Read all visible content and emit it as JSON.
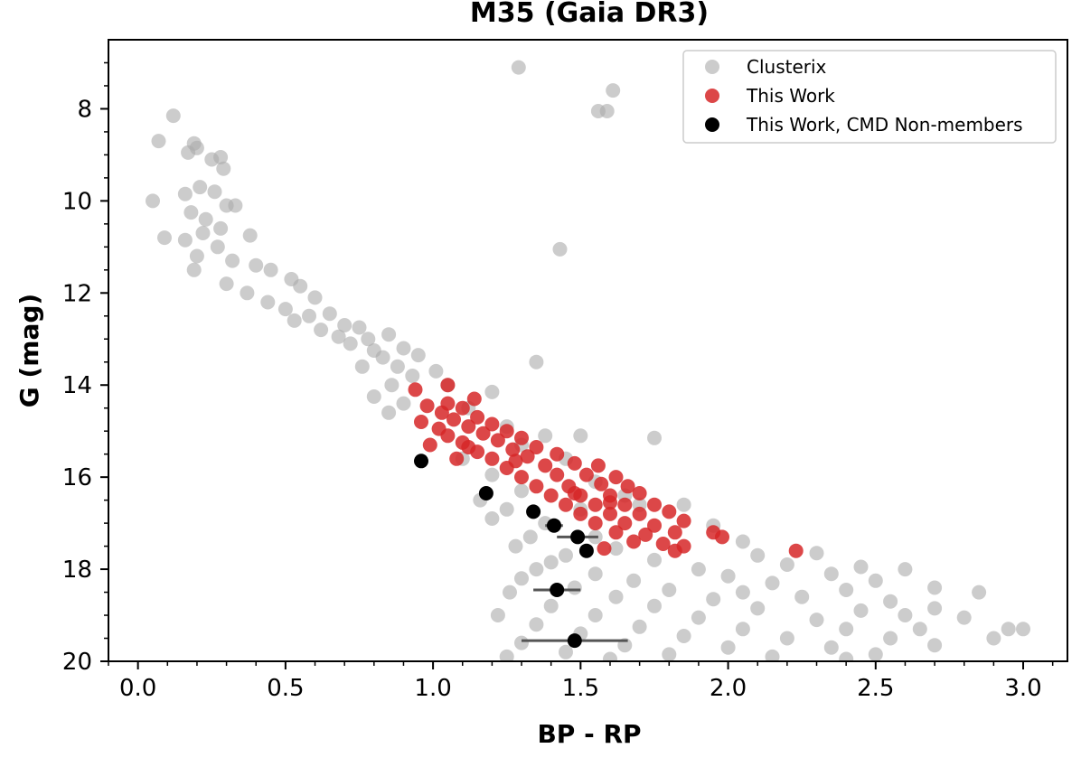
{
  "chart_data": {
    "type": "scatter",
    "title": "M35 (Gaia DR3)",
    "xlabel": "BP - RP",
    "ylabel": "G (mag)",
    "xlim": [
      -0.1,
      3.15
    ],
    "ylim": [
      20,
      6.5
    ],
    "y_inverted": true,
    "x_ticks": [
      {
        "value": 0.0,
        "label": "0.0"
      },
      {
        "value": 0.5,
        "label": "0.5"
      },
      {
        "value": 1.0,
        "label": "1.0"
      },
      {
        "value": 1.5,
        "label": "1.5"
      },
      {
        "value": 2.0,
        "label": "2.0"
      },
      {
        "value": 2.5,
        "label": "2.5"
      },
      {
        "value": 3.0,
        "label": "3.0"
      }
    ],
    "y_ticks": [
      {
        "value": 8,
        "label": "8"
      },
      {
        "value": 10,
        "label": "10"
      },
      {
        "value": 12,
        "label": "12"
      },
      {
        "value": 14,
        "label": "14"
      },
      {
        "value": 16,
        "label": "16"
      },
      {
        "value": 18,
        "label": "18"
      },
      {
        "value": 20,
        "label": "20"
      }
    ],
    "legend_position": "top-right",
    "colors": {
      "clusterix": "#aaaaaa",
      "this_work": "#d62728",
      "non_members": "#000000",
      "errorbar": "#555555"
    },
    "series": [
      {
        "name": "Clusterix",
        "style": "grey-circles",
        "points": [
          [
            1.29,
            7.1
          ],
          [
            1.61,
            7.6
          ],
          [
            1.56,
            8.05
          ],
          [
            1.59,
            8.05
          ],
          [
            0.12,
            8.15
          ],
          [
            0.07,
            8.7
          ],
          [
            0.19,
            8.75
          ],
          [
            0.2,
            8.85
          ],
          [
            0.17,
            8.95
          ],
          [
            0.25,
            9.1
          ],
          [
            0.28,
            9.05
          ],
          [
            0.29,
            9.3
          ],
          [
            0.21,
            9.7
          ],
          [
            0.26,
            9.8
          ],
          [
            0.16,
            9.85
          ],
          [
            0.3,
            10.1
          ],
          [
            0.05,
            10.0
          ],
          [
            0.33,
            10.1
          ],
          [
            0.18,
            10.25
          ],
          [
            0.23,
            10.4
          ],
          [
            0.28,
            10.6
          ],
          [
            0.22,
            10.7
          ],
          [
            0.09,
            10.8
          ],
          [
            0.16,
            10.85
          ],
          [
            0.38,
            10.75
          ],
          [
            0.27,
            11.0
          ],
          [
            1.43,
            11.05
          ],
          [
            0.2,
            11.2
          ],
          [
            0.32,
            11.3
          ],
          [
            0.4,
            11.4
          ],
          [
            0.19,
            11.5
          ],
          [
            0.45,
            11.5
          ],
          [
            0.3,
            11.8
          ],
          [
            0.52,
            11.7
          ],
          [
            0.55,
            11.85
          ],
          [
            0.37,
            12.0
          ],
          [
            0.6,
            12.1
          ],
          [
            0.44,
            12.2
          ],
          [
            0.5,
            12.35
          ],
          [
            0.58,
            12.5
          ],
          [
            0.65,
            12.45
          ],
          [
            0.53,
            12.6
          ],
          [
            0.7,
            12.7
          ],
          [
            0.75,
            12.75
          ],
          [
            0.62,
            12.8
          ],
          [
            0.68,
            12.95
          ],
          [
            0.78,
            13.0
          ],
          [
            0.85,
            12.9
          ],
          [
            0.72,
            13.1
          ],
          [
            0.8,
            13.25
          ],
          [
            0.9,
            13.2
          ],
          [
            0.83,
            13.4
          ],
          [
            0.95,
            13.35
          ],
          [
            0.88,
            13.6
          ],
          [
            0.76,
            13.6
          ],
          [
            1.01,
            13.7
          ],
          [
            0.93,
            13.8
          ],
          [
            0.86,
            14.0
          ],
          [
            1.05,
            14.0
          ],
          [
            0.8,
            14.25
          ],
          [
            1.2,
            14.15
          ],
          [
            0.9,
            14.4
          ],
          [
            1.35,
            13.5
          ],
          [
            1.12,
            14.5
          ],
          [
            0.85,
            14.6
          ],
          [
            1.25,
            14.9
          ],
          [
            1.38,
            15.1
          ],
          [
            1.5,
            15.1
          ],
          [
            1.3,
            15.3
          ],
          [
            1.75,
            15.15
          ],
          [
            1.1,
            15.6
          ],
          [
            1.45,
            15.6
          ],
          [
            1.2,
            15.95
          ],
          [
            1.55,
            16.1
          ],
          [
            1.16,
            16.5
          ],
          [
            1.3,
            16.3
          ],
          [
            1.65,
            16.4
          ],
          [
            1.25,
            16.7
          ],
          [
            1.5,
            16.7
          ],
          [
            1.7,
            16.6
          ],
          [
            1.85,
            16.6
          ],
          [
            1.2,
            16.9
          ],
          [
            1.38,
            17.0
          ],
          [
            1.95,
            17.05
          ],
          [
            1.33,
            17.3
          ],
          [
            1.55,
            17.3
          ],
          [
            2.05,
            17.4
          ],
          [
            1.28,
            17.5
          ],
          [
            1.62,
            17.55
          ],
          [
            1.45,
            17.7
          ],
          [
            2.1,
            17.7
          ],
          [
            2.3,
            17.65
          ],
          [
            1.75,
            17.8
          ],
          [
            1.4,
            17.85
          ],
          [
            2.2,
            17.9
          ],
          [
            1.35,
            18.0
          ],
          [
            1.9,
            18.0
          ],
          [
            2.45,
            17.95
          ],
          [
            1.55,
            18.1
          ],
          [
            2.0,
            18.15
          ],
          [
            2.35,
            18.1
          ],
          [
            2.6,
            18.0
          ],
          [
            1.3,
            18.2
          ],
          [
            1.68,
            18.25
          ],
          [
            2.15,
            18.3
          ],
          [
            2.5,
            18.25
          ],
          [
            1.48,
            18.4
          ],
          [
            1.8,
            18.45
          ],
          [
            2.05,
            18.5
          ],
          [
            2.4,
            18.45
          ],
          [
            2.7,
            18.4
          ],
          [
            1.26,
            18.5
          ],
          [
            1.62,
            18.6
          ],
          [
            1.95,
            18.65
          ],
          [
            2.25,
            18.6
          ],
          [
            2.55,
            18.7
          ],
          [
            2.85,
            18.5
          ],
          [
            1.4,
            18.8
          ],
          [
            1.75,
            18.8
          ],
          [
            2.1,
            18.85
          ],
          [
            2.45,
            18.9
          ],
          [
            2.7,
            18.85
          ],
          [
            1.22,
            19.0
          ],
          [
            1.55,
            19.0
          ],
          [
            1.9,
            19.05
          ],
          [
            2.3,
            19.1
          ],
          [
            2.6,
            19.0
          ],
          [
            2.8,
            19.05
          ],
          [
            1.35,
            19.2
          ],
          [
            1.7,
            19.25
          ],
          [
            2.05,
            19.3
          ],
          [
            2.4,
            19.3
          ],
          [
            2.65,
            19.3
          ],
          [
            2.95,
            19.3
          ],
          [
            1.5,
            19.4
          ],
          [
            1.85,
            19.45
          ],
          [
            2.2,
            19.5
          ],
          [
            2.55,
            19.5
          ],
          [
            2.9,
            19.5
          ],
          [
            1.3,
            19.6
          ],
          [
            1.65,
            19.65
          ],
          [
            2.0,
            19.7
          ],
          [
            2.35,
            19.7
          ],
          [
            2.7,
            19.65
          ],
          [
            3.0,
            19.3
          ],
          [
            1.45,
            19.8
          ],
          [
            1.8,
            19.85
          ],
          [
            2.15,
            19.9
          ],
          [
            2.5,
            19.85
          ],
          [
            1.6,
            19.95
          ],
          [
            2.4,
            19.95
          ],
          [
            1.25,
            19.9
          ]
        ]
      },
      {
        "name": "This Work",
        "style": "red-circles",
        "points": [
          [
            0.94,
            14.1
          ],
          [
            1.05,
            14.0
          ],
          [
            1.14,
            14.3
          ],
          [
            0.98,
            14.45
          ],
          [
            1.03,
            14.6
          ],
          [
            1.1,
            14.5
          ],
          [
            0.96,
            14.8
          ],
          [
            1.07,
            14.75
          ],
          [
            1.15,
            14.7
          ],
          [
            1.02,
            14.95
          ],
          [
            1.12,
            14.9
          ],
          [
            1.2,
            14.85
          ],
          [
            1.05,
            15.1
          ],
          [
            1.17,
            15.05
          ],
          [
            1.25,
            15.0
          ],
          [
            0.99,
            15.3
          ],
          [
            1.1,
            15.25
          ],
          [
            1.22,
            15.2
          ],
          [
            1.3,
            15.15
          ],
          [
            1.15,
            15.45
          ],
          [
            1.27,
            15.4
          ],
          [
            1.35,
            15.35
          ],
          [
            1.08,
            15.6
          ],
          [
            1.2,
            15.6
          ],
          [
            1.32,
            15.55
          ],
          [
            1.42,
            15.5
          ],
          [
            1.25,
            15.8
          ],
          [
            1.38,
            15.75
          ],
          [
            1.48,
            15.7
          ],
          [
            1.56,
            15.75
          ],
          [
            1.3,
            16.0
          ],
          [
            1.42,
            15.95
          ],
          [
            1.52,
            15.95
          ],
          [
            1.62,
            16.0
          ],
          [
            1.35,
            16.2
          ],
          [
            1.46,
            16.2
          ],
          [
            1.57,
            16.15
          ],
          [
            1.66,
            16.2
          ],
          [
            1.4,
            16.4
          ],
          [
            1.5,
            16.4
          ],
          [
            1.6,
            16.4
          ],
          [
            1.7,
            16.35
          ],
          [
            1.45,
            16.6
          ],
          [
            1.55,
            16.6
          ],
          [
            1.65,
            16.6
          ],
          [
            1.75,
            16.6
          ],
          [
            1.5,
            16.8
          ],
          [
            1.6,
            16.8
          ],
          [
            1.7,
            16.8
          ],
          [
            1.8,
            16.75
          ],
          [
            1.85,
            16.95
          ],
          [
            1.55,
            17.0
          ],
          [
            1.65,
            17.0
          ],
          [
            1.75,
            17.05
          ],
          [
            1.62,
            17.2
          ],
          [
            1.72,
            17.25
          ],
          [
            1.82,
            17.2
          ],
          [
            1.95,
            17.2
          ],
          [
            1.98,
            17.3
          ],
          [
            1.68,
            17.4
          ],
          [
            1.78,
            17.45
          ],
          [
            1.85,
            17.5
          ],
          [
            1.58,
            17.55
          ],
          [
            1.82,
            17.6
          ],
          [
            2.23,
            17.6
          ],
          [
            1.12,
            15.35
          ],
          [
            1.05,
            14.4
          ],
          [
            1.28,
            15.65
          ],
          [
            1.48,
            16.35
          ],
          [
            1.6,
            16.55
          ]
        ]
      },
      {
        "name": "This Work, CMD Non-members",
        "style": "black-circles",
        "points": [
          [
            0.96,
            15.65
          ],
          [
            1.18,
            16.35
          ],
          [
            1.34,
            16.75
          ],
          [
            1.41,
            17.05
          ],
          [
            1.49,
            17.3
          ],
          [
            1.52,
            17.6
          ],
          [
            1.42,
            18.45
          ],
          [
            1.48,
            19.55
          ]
        ],
        "x_errors": [
          0.0,
          0.0,
          0.0,
          0.03,
          0.07,
          0.0,
          0.08,
          0.18
        ]
      }
    ],
    "legend": [
      {
        "label": "Clusterix",
        "series": "Clusterix"
      },
      {
        "label": "This Work",
        "series": "This Work"
      },
      {
        "label": "This Work, CMD Non-members",
        "series": "This Work, CMD Non-members"
      }
    ]
  }
}
